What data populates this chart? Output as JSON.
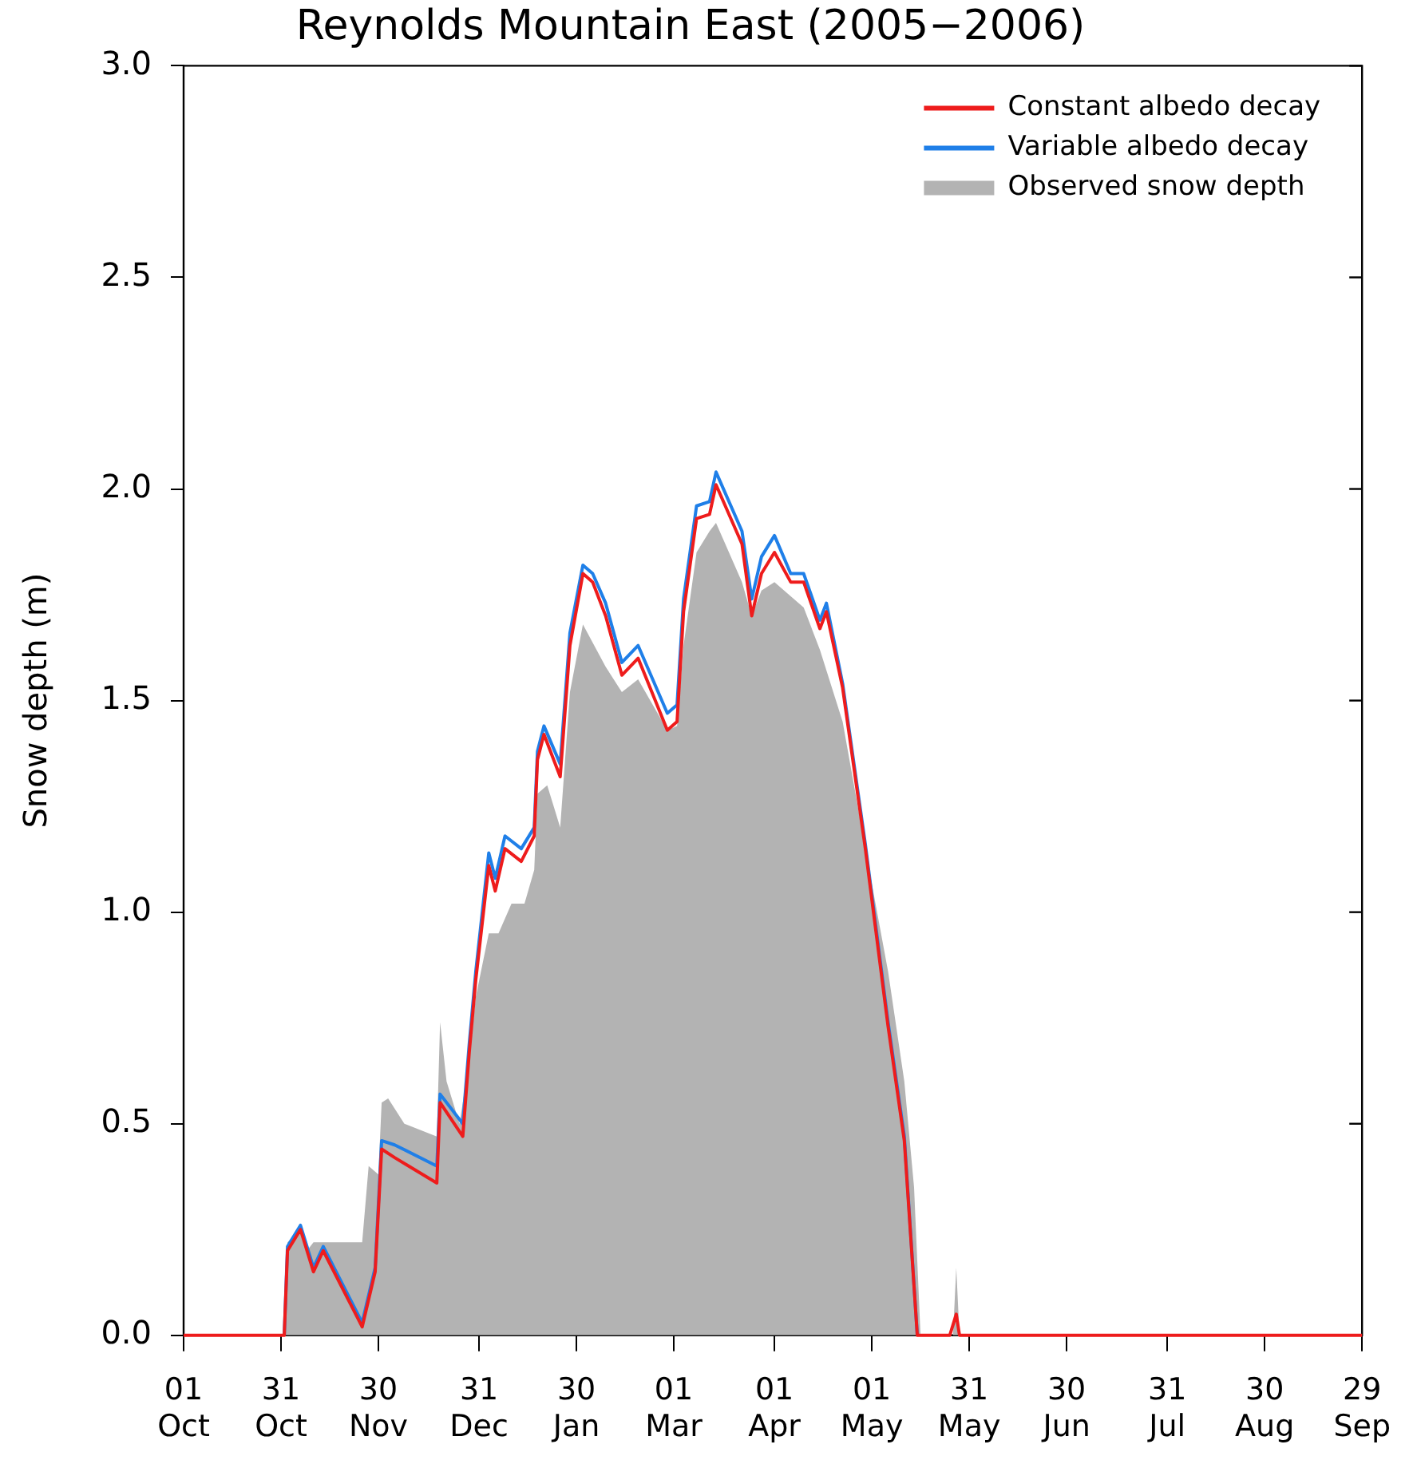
{
  "chart_data": {
    "type": "line",
    "title": "Reynolds Mountain East (2005−2006)",
    "ylabel": "Snow depth (m)",
    "xlim": [
      "2005-10-01",
      "2006-09-29"
    ],
    "xticks": [
      {
        "value": "2005-10-01",
        "label": "01 Oct"
      },
      {
        "value": "2005-10-31",
        "label": "31 Oct"
      },
      {
        "value": "2005-11-30",
        "label": "30 Nov"
      },
      {
        "value": "2005-12-31",
        "label": "31 Dec"
      },
      {
        "value": "2006-01-30",
        "label": "30 Jan"
      },
      {
        "value": "2006-03-01",
        "label": "01 Mar"
      },
      {
        "value": "2006-04-01",
        "label": "01 Apr"
      },
      {
        "value": "2006-05-01",
        "label": "01 May"
      },
      {
        "value": "2006-05-31",
        "label": "31 May"
      },
      {
        "value": "2006-06-30",
        "label": "30 Jun"
      },
      {
        "value": "2006-07-31",
        "label": "31 Jul"
      },
      {
        "value": "2006-08-30",
        "label": "30 Aug"
      },
      {
        "value": "2006-09-29",
        "label": "29 Sep"
      }
    ],
    "ylim": [
      0,
      3
    ],
    "yticks": [
      {
        "value": 0,
        "label": "0.0"
      },
      {
        "value": 0.5,
        "label": "0.5"
      },
      {
        "value": 1,
        "label": "1.0"
      },
      {
        "value": 1.5,
        "label": "1.5"
      },
      {
        "value": 2,
        "label": "2.0"
      },
      {
        "value": 2.5,
        "label": "2.5"
      },
      {
        "value": 3,
        "label": "3.0"
      }
    ],
    "grid": false,
    "legend": "top right",
    "marker": "none",
    "line_style": "solid",
    "series": [
      {
        "name": "Observed snow depth",
        "type": "area",
        "color": "#b3b3b3",
        "x": [
          "2005-10-01",
          "2005-11-01",
          "2005-11-02",
          "2005-11-06",
          "2005-11-08",
          "2005-11-10",
          "2005-11-25",
          "2005-11-27",
          "2005-11-30",
          "2005-12-01",
          "2005-12-03",
          "2005-12-08",
          "2005-12-18",
          "2005-12-19",
          "2005-12-21",
          "2005-12-25",
          "2005-12-28",
          "2005-12-30",
          "2006-01-03",
          "2006-01-06",
          "2006-01-10",
          "2006-01-14",
          "2006-01-17",
          "2006-01-18",
          "2006-01-21",
          "2006-01-25",
          "2006-01-28",
          "2006-02-01",
          "2006-02-08",
          "2006-02-13",
          "2006-02-18",
          "2006-02-27",
          "2006-03-02",
          "2006-03-04",
          "2006-03-08",
          "2006-03-12",
          "2006-03-14",
          "2006-03-22",
          "2006-03-25",
          "2006-03-28",
          "2006-04-01",
          "2006-04-10",
          "2006-04-15",
          "2006-04-22",
          "2006-04-29",
          "2006-05-06",
          "2006-05-11",
          "2006-05-14",
          "2006-05-16",
          "2006-05-26",
          "2006-05-27",
          "2006-05-28",
          "2006-09-29"
        ],
        "values": [
          0,
          0,
          0.22,
          0.25,
          0.2,
          0.22,
          0.22,
          0.4,
          0.38,
          0.55,
          0.56,
          0.5,
          0.47,
          0.74,
          0.6,
          0.5,
          0.65,
          0.8,
          0.95,
          0.95,
          1.02,
          1.02,
          1.1,
          1.28,
          1.3,
          1.2,
          1.52,
          1.68,
          1.58,
          1.52,
          1.55,
          1.43,
          1.44,
          1.63,
          1.85,
          1.9,
          1.92,
          1.78,
          1.7,
          1.76,
          1.78,
          1.72,
          1.62,
          1.45,
          1.15,
          0.86,
          0.6,
          0.35,
          0,
          0,
          0.16,
          0,
          0
        ]
      },
      {
        "name": "Variable albedo decay",
        "type": "line",
        "color": "#1f7fe8",
        "x": [
          "2005-11-01",
          "2005-11-02",
          "2005-11-06",
          "2005-11-10",
          "2005-11-13",
          "2005-11-25",
          "2005-11-29",
          "2005-12-01",
          "2005-12-05",
          "2005-12-18",
          "2005-12-19",
          "2005-12-26",
          "2005-12-28",
          "2005-12-30",
          "2006-01-03",
          "2006-01-05",
          "2006-01-08",
          "2006-01-13",
          "2006-01-17",
          "2006-01-18",
          "2006-01-20",
          "2006-01-25",
          "2006-01-28",
          "2006-02-01",
          "2006-02-04",
          "2006-02-08",
          "2006-02-13",
          "2006-02-18",
          "2006-02-27",
          "2006-03-02",
          "2006-03-04",
          "2006-03-08",
          "2006-03-12",
          "2006-03-14",
          "2006-03-22",
          "2006-03-25",
          "2006-03-28",
          "2006-04-01",
          "2006-04-06",
          "2006-04-10",
          "2006-04-15",
          "2006-04-17",
          "2006-04-22",
          "2006-04-29",
          "2006-05-06",
          "2006-05-11",
          "2006-05-15"
        ],
        "values": [
          0,
          0.21,
          0.26,
          0.16,
          0.21,
          0.03,
          0.16,
          0.46,
          0.45,
          0.4,
          0.57,
          0.5,
          0.69,
          0.86,
          1.14,
          1.08,
          1.18,
          1.15,
          1.2,
          1.38,
          1.44,
          1.35,
          1.66,
          1.82,
          1.8,
          1.73,
          1.59,
          1.63,
          1.47,
          1.49,
          1.74,
          1.96,
          1.97,
          2.04,
          1.9,
          1.74,
          1.84,
          1.89,
          1.8,
          1.8,
          1.69,
          1.73,
          1.54,
          1.16,
          0.74,
          0.47,
          0
        ]
      },
      {
        "name": "Constant albedo decay",
        "type": "line",
        "color": "#ee1c1c",
        "x": [
          "2005-10-01",
          "2005-11-01",
          "2005-11-02",
          "2005-11-06",
          "2005-11-10",
          "2005-11-13",
          "2005-11-25",
          "2005-11-29",
          "2005-12-01",
          "2005-12-05",
          "2005-12-18",
          "2005-12-19",
          "2005-12-26",
          "2005-12-28",
          "2005-12-30",
          "2006-01-03",
          "2006-01-05",
          "2006-01-08",
          "2006-01-13",
          "2006-01-17",
          "2006-01-18",
          "2006-01-20",
          "2006-01-25",
          "2006-01-28",
          "2006-02-01",
          "2006-02-04",
          "2006-02-08",
          "2006-02-13",
          "2006-02-18",
          "2006-02-27",
          "2006-03-02",
          "2006-03-04",
          "2006-03-08",
          "2006-03-12",
          "2006-03-14",
          "2006-03-22",
          "2006-03-25",
          "2006-03-28",
          "2006-04-01",
          "2006-04-06",
          "2006-04-10",
          "2006-04-15",
          "2006-04-17",
          "2006-04-22",
          "2006-04-29",
          "2006-05-06",
          "2006-05-11",
          "2006-05-15",
          "2006-05-25",
          "2006-05-27",
          "2006-05-28",
          "2006-09-29"
        ],
        "values": [
          0,
          0,
          0.2,
          0.25,
          0.15,
          0.2,
          0.02,
          0.15,
          0.44,
          0.42,
          0.36,
          0.55,
          0.47,
          0.67,
          0.84,
          1.11,
          1.05,
          1.15,
          1.12,
          1.18,
          1.36,
          1.42,
          1.32,
          1.63,
          1.8,
          1.78,
          1.7,
          1.56,
          1.6,
          1.43,
          1.45,
          1.71,
          1.93,
          1.94,
          2.01,
          1.87,
          1.7,
          1.8,
          1.85,
          1.78,
          1.78,
          1.67,
          1.71,
          1.53,
          1.15,
          0.73,
          0.46,
          0,
          0,
          0.05,
          0,
          0
        ]
      }
    ]
  }
}
